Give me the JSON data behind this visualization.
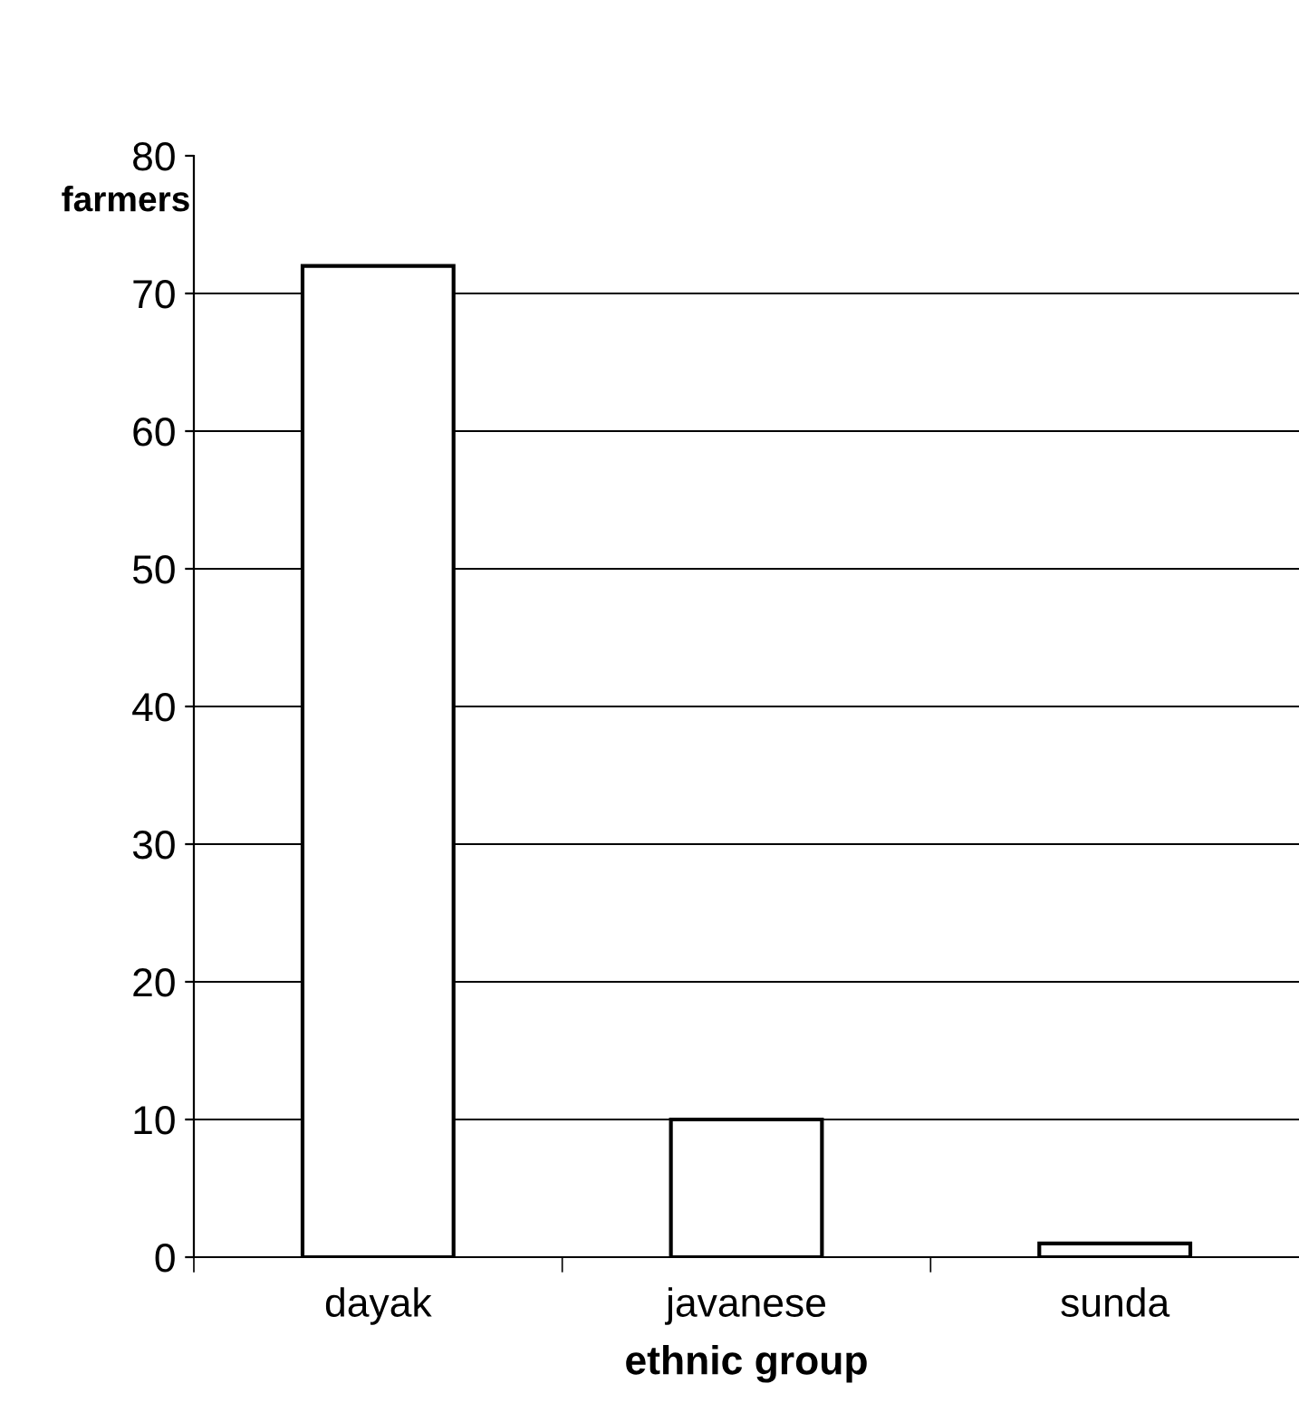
{
  "chart_data": {
    "type": "bar",
    "xlabel": "ethnic group",
    "ylabel": "farmers",
    "categories": [
      "dayak",
      "javanese",
      "sunda"
    ],
    "values": [
      72,
      10,
      1
    ],
    "color": "#ffffff",
    "ylim": [
      0,
      80
    ],
    "yticks": [
      0,
      10,
      20,
      30,
      40,
      50,
      60,
      70,
      80
    ],
    "grid": "y"
  }
}
